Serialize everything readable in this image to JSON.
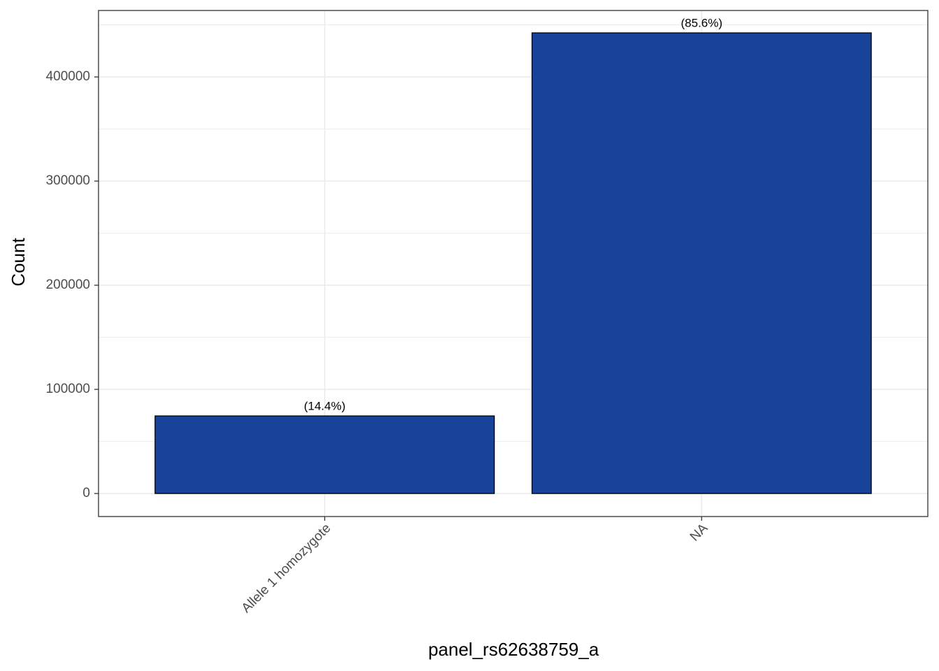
{
  "chart_data": {
    "type": "bar",
    "x_label": "panel_rs62638759_a",
    "y_label": "Count",
    "categories": [
      "Allele 1 homozygote",
      "NA"
    ],
    "values": [
      74500,
      442300
    ],
    "shares": [
      14.4,
      85.6
    ],
    "share_labels": [
      "(14.4%)",
      "(85.6%)"
    ],
    "color": "#18439a",
    "ylim": [
      -22100,
      463800
    ],
    "yticks": [
      0,
      100000,
      200000,
      300000,
      400000
    ],
    "minor_yticks": [
      50000,
      150000,
      250000,
      350000,
      450000
    ],
    "grid": true
  }
}
